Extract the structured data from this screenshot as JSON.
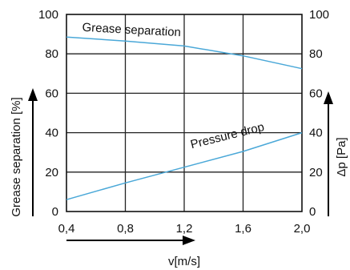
{
  "chart_data": {
    "type": "line",
    "xlabel": "v[m/s]",
    "ylabel_left": "Grease separation [%]",
    "ylabel_right": "Δp [Pa]",
    "xlim": [
      0.4,
      2.0
    ],
    "ylim": [
      0,
      100
    ],
    "ylim_right": [
      0,
      100
    ],
    "x_ticks": [
      "0,4",
      "0,8",
      "1,2",
      "1,6",
      "2,0"
    ],
    "y_ticks_left": [
      "0",
      "20",
      "40",
      "60",
      "80",
      "100"
    ],
    "y_ticks_right": [
      "0",
      "20",
      "40",
      "60",
      "80",
      "100"
    ],
    "grid": true,
    "series": [
      {
        "name": "Grease separation",
        "axis": "left",
        "color": "#4aa8d8",
        "x": [
          0.4,
          0.8,
          1.2,
          1.6,
          2.0
        ],
        "y": [
          88.5,
          86.5,
          84,
          79,
          72.5
        ]
      },
      {
        "name": "Pressure drop",
        "axis": "right",
        "color": "#4aa8d8",
        "x": [
          0.4,
          0.8,
          1.2,
          1.6,
          2.0
        ],
        "y": [
          6,
          14.5,
          22.5,
          30.5,
          40
        ]
      }
    ]
  }
}
